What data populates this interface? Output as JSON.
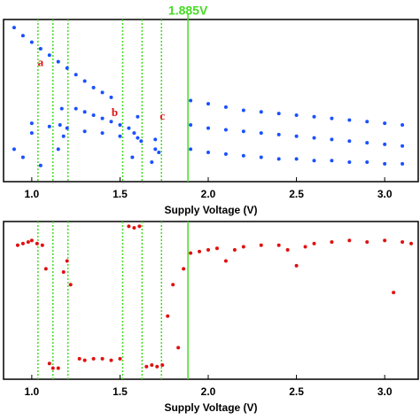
{
  "chart_data": [
    {
      "type": "scatter",
      "x_label": "Supply Voltage (V)",
      "marker_label": "1.885V",
      "marker_x": 1.885,
      "vlines": [
        1.035,
        1.12,
        1.205,
        1.515,
        1.625,
        1.735
      ],
      "vline_color": "#44dd22",
      "annotations": [
        {
          "text": "a",
          "x": 1.05,
          "y": 73
        },
        {
          "text": "b",
          "x": 1.47,
          "y": 42
        },
        {
          "text": "c",
          "x": 1.74,
          "y": 40
        }
      ],
      "annotation_color": "#dd1111",
      "xlim": [
        0.84,
        3.19
      ],
      "ylim": [
        0,
        100
      ],
      "xticks": [
        {
          "value": 1.0,
          "label": "1.0"
        },
        {
          "value": 1.5,
          "label": "1.5"
        },
        {
          "value": 2.0,
          "label": "2.0"
        },
        {
          "value": 2.5,
          "label": "2.5"
        },
        {
          "value": 3.0,
          "label": "3.0"
        }
      ],
      "series": [
        {
          "color": "#1a50ff",
          "x": [
            0.9,
            0.95,
            1.0,
            1.05,
            1.1,
            1.15,
            1.2,
            1.25,
            1.3,
            1.35,
            1.4,
            1.45,
            1.25,
            1.3,
            1.35,
            1.4,
            1.45,
            1.5,
            1.55,
            1.0,
            1.1,
            1.2,
            1.3,
            1.4,
            1.5,
            1.6,
            1.7,
            0.9,
            0.95,
            1.0,
            1.05,
            1.15,
            1.16,
            1.17,
            1.18,
            1.57,
            1.58,
            1.6,
            1.62,
            1.68,
            1.7,
            1.72,
            1.9,
            2.0,
            2.1,
            2.2,
            2.3,
            2.4,
            2.5,
            2.6,
            2.7,
            2.8,
            2.9,
            3.0,
            3.1,
            1.9,
            2.0,
            2.1,
            2.2,
            2.3,
            2.4,
            2.5,
            2.6,
            2.7,
            2.8,
            2.9,
            3.0,
            3.1,
            1.9,
            2.0,
            2.1,
            2.2,
            2.3,
            2.4,
            2.5,
            2.6,
            2.7,
            2.8,
            2.9,
            3.0,
            3.1
          ],
          "values": [
            95,
            90,
            86,
            82,
            78,
            74,
            70,
            66,
            62,
            58,
            55,
            52,
            45,
            43,
            41,
            39,
            37,
            35,
            33,
            36,
            34,
            33,
            31,
            30,
            28,
            27,
            26,
            20,
            15,
            30,
            10,
            20,
            35,
            45,
            28,
            15,
            30,
            40,
            25,
            12,
            20,
            18,
            50,
            48,
            46,
            44,
            43,
            42,
            41,
            40,
            39,
            38,
            37,
            36,
            35,
            35,
            33,
            32,
            31,
            30,
            29,
            28,
            27,
            26,
            25,
            24,
            23,
            22,
            20,
            18,
            17,
            16,
            15,
            14,
            14,
            13,
            13,
            12,
            12,
            11,
            11
          ]
        }
      ]
    },
    {
      "type": "scatter",
      "x_label": "Supply Voltage (V)",
      "marker_x": 1.885,
      "vlines": [
        1.035,
        1.12,
        1.205,
        1.515,
        1.625,
        1.735
      ],
      "vline_color": "#44dd22",
      "xlim": [
        0.84,
        3.19
      ],
      "ylim": [
        0,
        100
      ],
      "xticks": [
        {
          "value": 1.0,
          "label": "1.0"
        },
        {
          "value": 1.5,
          "label": "1.5"
        },
        {
          "value": 2.0,
          "label": "2.0"
        },
        {
          "value": 2.5,
          "label": "2.5"
        },
        {
          "value": 3.0,
          "label": "3.0"
        }
      ],
      "series": [
        {
          "color": "#e01010",
          "x": [
            0.92,
            0.95,
            0.98,
            1.0,
            1.03,
            1.06,
            1.08,
            1.1,
            1.12,
            1.15,
            1.18,
            1.2,
            1.22,
            1.27,
            1.3,
            1.35,
            1.4,
            1.45,
            1.5,
            1.55,
            1.58,
            1.61,
            1.65,
            1.68,
            1.71,
            1.74,
            1.77,
            1.8,
            1.83,
            1.86,
            1.9,
            1.95,
            2.0,
            2.05,
            2.1,
            2.15,
            2.2,
            2.3,
            2.4,
            2.45,
            2.5,
            2.55,
            2.6,
            2.7,
            2.8,
            2.9,
            3.0,
            3.05,
            3.1,
            3.15
          ],
          "values": [
            85,
            86,
            87,
            88,
            86,
            85,
            70,
            10,
            7,
            7,
            68,
            75,
            60,
            13,
            12,
            13,
            13,
            12,
            13,
            97,
            96,
            97,
            8,
            9,
            8,
            9,
            40,
            60,
            20,
            70,
            80,
            81,
            82,
            83,
            75,
            82,
            84,
            85,
            85,
            82,
            72,
            84,
            86,
            87,
            88,
            87,
            88,
            55,
            87,
            86
          ]
        }
      ]
    }
  ]
}
